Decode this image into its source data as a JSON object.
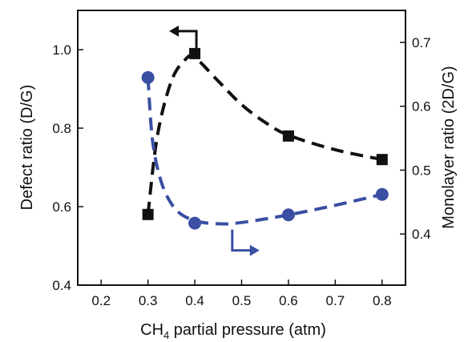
{
  "chart_data": {
    "type": "line",
    "xlabel": {
      "pre": "CH",
      "sub": "4",
      "post": " partial pressure (atm)"
    },
    "ylabel_left": "Defect ratio (D/G)",
    "ylabel_right": "Monolayer ratio (2D/G)",
    "xlim": [
      0.15,
      0.85
    ],
    "ylim_left": [
      0.4,
      1.1
    ],
    "ylim_right": [
      0.32,
      0.75
    ],
    "x_ticks": [
      "0.2",
      "0.3",
      "0.4",
      "0.5",
      "0.6",
      "0.7",
      "0.8"
    ],
    "y_left_ticks": [
      "0.4",
      "0.6",
      "0.8",
      "1.0"
    ],
    "y_right_ticks": [
      "0.4",
      "0.5",
      "0.6",
      "0.7"
    ],
    "grid": false,
    "series": [
      {
        "axis": "left",
        "marker": "square",
        "color": "#111111",
        "x": [
          0.3,
          0.4,
          0.6,
          0.8
        ],
        "y": [
          0.58,
          0.99,
          0.78,
          0.72
        ],
        "fit_curve": [
          [
            0.3,
            0.58
          ],
          [
            0.32,
            0.78
          ],
          [
            0.35,
            0.92
          ],
          [
            0.38,
            0.975
          ],
          [
            0.4,
            0.98
          ],
          [
            0.45,
            0.92
          ],
          [
            0.5,
            0.86
          ],
          [
            0.55,
            0.815
          ],
          [
            0.6,
            0.782
          ],
          [
            0.7,
            0.745
          ],
          [
            0.8,
            0.72
          ]
        ]
      },
      {
        "axis": "right",
        "marker": "circle",
        "color": "#3a4fa3",
        "x": [
          0.3,
          0.4,
          0.6,
          0.8
        ],
        "y": [
          0.645,
          0.417,
          0.43,
          0.462
        ],
        "fit_curve": [
          [
            0.3,
            0.645
          ],
          [
            0.31,
            0.545
          ],
          [
            0.33,
            0.478
          ],
          [
            0.36,
            0.438
          ],
          [
            0.4,
            0.421
          ],
          [
            0.45,
            0.416
          ],
          [
            0.5,
            0.418
          ],
          [
            0.6,
            0.43
          ],
          [
            0.7,
            0.445
          ],
          [
            0.8,
            0.462
          ]
        ]
      }
    ],
    "annotations": [
      {
        "series": 0,
        "direction": "left",
        "color": "#111111"
      },
      {
        "series": 1,
        "direction": "right",
        "color": "#3a4fa3"
      }
    ]
  }
}
